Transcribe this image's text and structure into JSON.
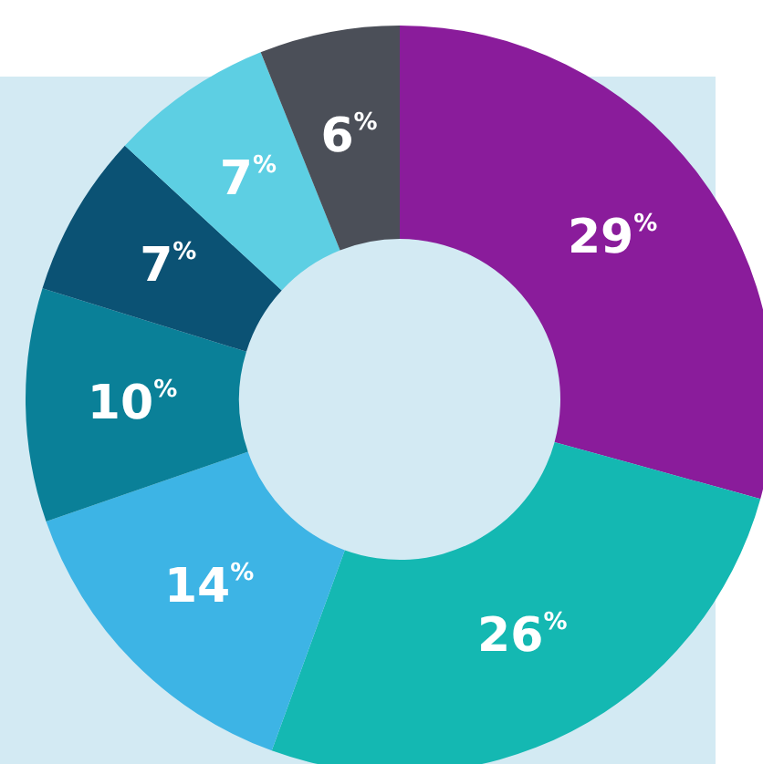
{
  "chart_data": {
    "type": "donut",
    "categories": [
      null,
      null,
      null,
      null,
      null,
      null,
      null
    ],
    "values": [
      29,
      26,
      14,
      10,
      7,
      7,
      6
    ],
    "colors": [
      "#8a1c9b",
      "#14b8b2",
      "#3db4e5",
      "#0a8098",
      "#0b5274",
      "#5dcfe3",
      "#4b4f58"
    ],
    "value_labels": [
      "29$^{%}$",
      "26$^{%}$",
      "14$^{%}$",
      "10$^{%}$",
      "7$^{%}$",
      "7$^{%}$",
      "6$^{%}$"
    ],
    "legend": false
  }
}
